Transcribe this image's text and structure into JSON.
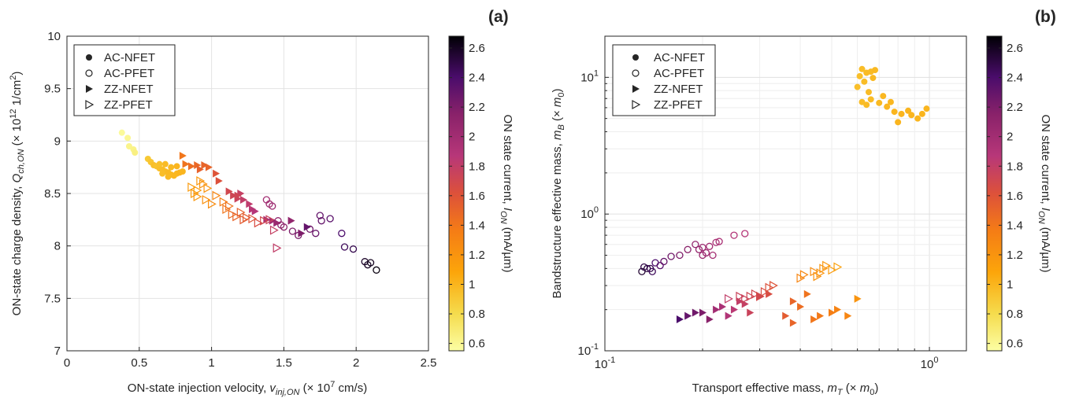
{
  "chart_data": [
    {
      "type": "scatter",
      "panel_label": "(a)",
      "xlabel_main": "ON-state injection velocity, ",
      "xlabel_var": "v",
      "xlabel_sub": "inj,ON",
      "xlabel_unit_pre": " (× 10",
      "xlabel_unit_exp": "7",
      "xlabel_unit_post": " cm/s)",
      "ylabel_main": "ON-state charge density, ",
      "ylabel_var": "Q",
      "ylabel_sub": "ch,ON",
      "ylabel_unit_pre": " (× 10",
      "ylabel_unit_exp": "12",
      "ylabel_unit_post": " 1/cm",
      "ylabel_unit_exp2": "2",
      "ylabel_unit_end": ")",
      "xlim": [
        0,
        2.5
      ],
      "ylim": [
        7,
        10
      ],
      "xticks": [
        "0",
        "0.5",
        "1",
        "1.5",
        "2",
        "2.5"
      ],
      "yticks": [
        "7",
        "7.5",
        "8",
        "8.5",
        "9",
        "9.5",
        "10"
      ],
      "xscale": "linear",
      "yscale": "linear",
      "grid": true,
      "legend_position": "top-left",
      "legend": [
        "AC-NFET",
        "AC-PFET",
        "ZZ-NFET",
        "ZZ-PFET"
      ],
      "colorbar": {
        "label_main": "ON state current, ",
        "label_var": "I",
        "label_sub": "ON",
        "label_unit": " (mA/µm)",
        "range": [
          0.55,
          2.68
        ],
        "ticks": [
          "0.6",
          "0.8",
          "1",
          "1.2",
          "1.4",
          "1.6",
          "1.8",
          "2",
          "2.2",
          "2.4",
          "2.6"
        ]
      },
      "series": [
        {
          "name": "AC-NFET",
          "marker": "filled-circle",
          "points": [
            [
              0.38,
              9.08,
              0.58
            ],
            [
              0.42,
              9.03,
              0.6
            ],
            [
              0.43,
              8.95,
              0.62
            ],
            [
              0.46,
              8.92,
              0.63
            ],
            [
              0.47,
              8.89,
              0.65
            ],
            [
              0.56,
              8.83,
              0.9
            ],
            [
              0.58,
              8.8,
              0.92
            ],
            [
              0.6,
              8.77,
              0.95
            ],
            [
              0.62,
              8.76,
              0.93
            ],
            [
              0.64,
              8.74,
              0.95
            ],
            [
              0.66,
              8.73,
              0.96
            ],
            [
              0.68,
              8.71,
              0.97
            ],
            [
              0.7,
              8.7,
              0.98
            ],
            [
              0.72,
              8.68,
              0.98
            ],
            [
              0.74,
              8.67,
              0.99
            ],
            [
              0.76,
              8.69,
              0.99
            ],
            [
              0.78,
              8.7,
              1.0
            ],
            [
              0.8,
              8.71,
              1.0
            ],
            [
              0.68,
              8.78,
              0.97
            ],
            [
              0.72,
              8.75,
              0.98
            ],
            [
              0.76,
              8.76,
              1.0
            ],
            [
              0.66,
              8.69,
              0.96
            ],
            [
              0.64,
              8.78,
              0.94
            ],
            [
              0.7,
              8.66,
              0.98
            ]
          ]
        },
        {
          "name": "AC-PFET",
          "marker": "open-circle",
          "points": [
            [
              1.38,
              8.44,
              2.0
            ],
            [
              1.4,
              8.4,
              2.02
            ],
            [
              1.42,
              8.38,
              2.04
            ],
            [
              1.46,
              8.24,
              2.1
            ],
            [
              1.48,
              8.2,
              2.12
            ],
            [
              1.5,
              8.18,
              2.14
            ],
            [
              1.56,
              8.14,
              2.2
            ],
            [
              1.6,
              8.1,
              2.22
            ],
            [
              1.68,
              8.16,
              2.25
            ],
            [
              1.72,
              8.12,
              2.28
            ],
            [
              1.75,
              8.29,
              2.3
            ],
            [
              1.76,
              8.24,
              2.3
            ],
            [
              1.82,
              8.26,
              2.34
            ],
            [
              1.9,
              8.12,
              2.4
            ],
            [
              1.92,
              7.99,
              2.45
            ],
            [
              1.98,
              7.97,
              2.48
            ],
            [
              2.06,
              7.85,
              2.58
            ],
            [
              2.08,
              7.82,
              2.6
            ],
            [
              2.1,
              7.84,
              2.61
            ],
            [
              2.14,
              7.77,
              2.65
            ]
          ]
        },
        {
          "name": "ZZ-NFET",
          "marker": "filled-triangle",
          "points": [
            [
              0.8,
              8.86,
              1.4
            ],
            [
              0.82,
              8.78,
              1.42
            ],
            [
              0.86,
              8.76,
              1.45
            ],
            [
              0.9,
              8.77,
              1.48
            ],
            [
              0.95,
              8.77,
              1.5
            ],
            [
              0.92,
              8.73,
              1.52
            ],
            [
              0.98,
              8.75,
              1.5
            ],
            [
              1.03,
              8.69,
              1.6
            ],
            [
              1.05,
              8.62,
              1.62
            ],
            [
              1.12,
              8.52,
              1.7
            ],
            [
              1.15,
              8.48,
              1.72
            ],
            [
              1.18,
              8.45,
              1.75
            ],
            [
              1.2,
              8.5,
              1.78
            ],
            [
              1.22,
              8.44,
              1.8
            ],
            [
              1.26,
              8.4,
              1.82
            ],
            [
              1.28,
              8.35,
              1.85
            ],
            [
              1.3,
              8.33,
              1.88
            ],
            [
              1.38,
              8.25,
              1.95
            ],
            [
              1.42,
              8.24,
              2.0
            ],
            [
              1.45,
              8.22,
              2.05
            ],
            [
              1.55,
              8.24,
              2.1
            ],
            [
              1.62,
              8.12,
              2.2
            ],
            [
              1.66,
              8.18,
              2.3
            ],
            [
              1.18,
              8.48,
              1.72
            ]
          ]
        },
        {
          "name": "ZZ-PFET",
          "marker": "open-triangle",
          "points": [
            [
              0.86,
              8.56,
              1.15
            ],
            [
              0.88,
              8.5,
              1.15
            ],
            [
              0.9,
              8.47,
              1.18
            ],
            [
              0.92,
              8.62,
              1.18
            ],
            [
              0.94,
              8.59,
              1.2
            ],
            [
              0.96,
              8.44,
              1.22
            ],
            [
              1.0,
              8.4,
              1.25
            ],
            [
              1.03,
              8.48,
              1.3
            ],
            [
              1.08,
              8.42,
              1.35
            ],
            [
              1.1,
              8.35,
              1.4
            ],
            [
              1.14,
              8.3,
              1.45
            ],
            [
              1.17,
              8.28,
              1.5
            ],
            [
              1.2,
              8.32,
              1.52
            ],
            [
              1.24,
              8.27,
              1.55
            ],
            [
              1.28,
              8.26,
              1.6
            ],
            [
              1.32,
              8.22,
              1.65
            ],
            [
              1.36,
              8.24,
              1.7
            ],
            [
              1.4,
              8.25,
              1.75
            ],
            [
              1.43,
              8.15,
              1.78
            ],
            [
              1.45,
              7.98,
              1.8
            ],
            [
              0.97,
              8.55,
              1.2
            ],
            [
              0.9,
              8.53,
              1.16
            ],
            [
              1.12,
              8.38,
              1.42
            ],
            [
              1.22,
              8.25,
              1.55
            ]
          ]
        }
      ]
    },
    {
      "type": "scatter",
      "panel_label": "(b)",
      "xlabel_main": "Transport effective mass, ",
      "xlabel_var": "m",
      "xlabel_sub": "T",
      "xlabel_unit_pre": " (× ",
      "xlabel_unit_var": "m",
      "xlabel_unit_sub": "0",
      "xlabel_unit_post": ")",
      "ylabel_main": "Bandstructure effective mass, ",
      "ylabel_var": "m",
      "ylabel_sub": "B",
      "ylabel_unit_pre": " (× ",
      "ylabel_unit_var": "m",
      "ylabel_unit_sub": "0",
      "ylabel_unit_post": ")",
      "xlim": [
        0.1,
        1.3
      ],
      "ylim": [
        0.1,
        20
      ],
      "xscale": "log",
      "yscale": "log",
      "xticks": [
        {
          "base": "10",
          "exp": "-1"
        },
        {
          "base": "10",
          "exp": "0"
        }
      ],
      "yticks": [
        {
          "base": "10",
          "exp": "-1"
        },
        {
          "base": "10",
          "exp": "0"
        },
        {
          "base": "10",
          "exp": "1"
        }
      ],
      "grid": true,
      "legend_position": "top-left",
      "legend": [
        "AC-NFET",
        "AC-PFET",
        "ZZ-NFET",
        "ZZ-PFET"
      ],
      "colorbar": {
        "label_main": "ON state current, ",
        "label_var": "I",
        "label_sub": "ON",
        "label_unit": " (mA/µm)",
        "range": [
          0.55,
          2.68
        ],
        "ticks": [
          "0.6",
          "0.8",
          "1",
          "1.2",
          "1.4",
          "1.6",
          "1.8",
          "2",
          "2.2",
          "2.4",
          "2.6"
        ]
      },
      "series": [
        {
          "name": "AC-NFET",
          "marker": "filled-circle",
          "points": [
            [
              0.6,
              8.5,
              0.95
            ],
            [
              0.61,
              10.2,
              0.95
            ],
            [
              0.62,
              11.5,
              0.96
            ],
            [
              0.63,
              9.3,
              0.96
            ],
            [
              0.64,
              10.8,
              0.97
            ],
            [
              0.65,
              7.8,
              0.97
            ],
            [
              0.66,
              11.0,
              0.97
            ],
            [
              0.67,
              9.9,
              0.98
            ],
            [
              0.68,
              11.3,
              0.98
            ],
            [
              0.62,
              6.6,
              0.96
            ],
            [
              0.64,
              6.3,
              0.97
            ],
            [
              0.66,
              6.9,
              0.97
            ],
            [
              0.7,
              6.5,
              0.98
            ],
            [
              0.72,
              7.3,
              0.99
            ],
            [
              0.74,
              6.1,
              0.99
            ],
            [
              0.78,
              5.6,
              1.0
            ],
            [
              0.8,
              4.7,
              1.0
            ],
            [
              0.82,
              5.4,
              1.0
            ],
            [
              0.86,
              5.7,
              1.0
            ],
            [
              0.88,
              5.3,
              1.0
            ],
            [
              0.92,
              5.0,
              1.0
            ],
            [
              0.95,
              5.4,
              1.0
            ],
            [
              0.98,
              5.9,
              1.0
            ],
            [
              0.76,
              6.6,
              0.99
            ]
          ]
        },
        {
          "name": "AC-PFET",
          "marker": "open-circle",
          "points": [
            [
              0.13,
              0.38,
              2.55
            ],
            [
              0.132,
              0.41,
              2.5
            ],
            [
              0.135,
              0.4,
              2.52
            ],
            [
              0.138,
              0.4,
              2.48
            ],
            [
              0.14,
              0.38,
              2.45
            ],
            [
              0.143,
              0.44,
              2.4
            ],
            [
              0.148,
              0.42,
              2.35
            ],
            [
              0.152,
              0.45,
              2.3
            ],
            [
              0.16,
              0.49,
              2.25
            ],
            [
              0.17,
              0.5,
              2.2
            ],
            [
              0.18,
              0.55,
              2.15
            ],
            [
              0.19,
              0.6,
              2.1
            ],
            [
              0.195,
              0.55,
              2.08
            ],
            [
              0.2,
              0.5,
              2.05
            ],
            [
              0.2,
              0.57,
              2.05
            ],
            [
              0.205,
              0.52,
              2.02
            ],
            [
              0.21,
              0.58,
              2.0
            ],
            [
              0.215,
              0.5,
              1.98
            ],
            [
              0.22,
              0.62,
              1.95
            ],
            [
              0.225,
              0.63,
              1.95
            ],
            [
              0.25,
              0.7,
              1.9
            ],
            [
              0.27,
              0.72,
              1.88
            ]
          ]
        },
        {
          "name": "ZZ-NFET",
          "marker": "filled-triangle",
          "points": [
            [
              0.17,
              0.17,
              2.4
            ],
            [
              0.18,
              0.18,
              2.3
            ],
            [
              0.19,
              0.19,
              2.25
            ],
            [
              0.2,
              0.19,
              2.2
            ],
            [
              0.21,
              0.17,
              2.15
            ],
            [
              0.22,
              0.2,
              2.0
            ],
            [
              0.23,
              0.21,
              1.95
            ],
            [
              0.24,
              0.18,
              1.9
            ],
            [
              0.25,
              0.2,
              1.85
            ],
            [
              0.26,
              0.23,
              1.8
            ],
            [
              0.27,
              0.22,
              1.78
            ],
            [
              0.28,
              0.19,
              1.75
            ],
            [
              0.3,
              0.25,
              1.7
            ],
            [
              0.32,
              0.26,
              1.65
            ],
            [
              0.36,
              0.18,
              1.55
            ],
            [
              0.38,
              0.16,
              1.5
            ],
            [
              0.4,
              0.21,
              1.45
            ],
            [
              0.42,
              0.26,
              1.42
            ],
            [
              0.44,
              0.17,
              1.4
            ],
            [
              0.46,
              0.18,
              1.38
            ],
            [
              0.5,
              0.19,
              1.35
            ],
            [
              0.52,
              0.2,
              1.32
            ],
            [
              0.56,
              0.18,
              1.3
            ],
            [
              0.6,
              0.24,
              1.2
            ],
            [
              0.38,
              0.23,
              1.5
            ]
          ]
        },
        {
          "name": "ZZ-PFET",
          "marker": "open-triangle",
          "points": [
            [
              0.24,
              0.24,
              1.8
            ],
            [
              0.26,
              0.25,
              1.75
            ],
            [
              0.27,
              0.24,
              1.75
            ],
            [
              0.28,
              0.25,
              1.72
            ],
            [
              0.29,
              0.26,
              1.7
            ],
            [
              0.3,
              0.25,
              1.68
            ],
            [
              0.31,
              0.27,
              1.65
            ],
            [
              0.32,
              0.29,
              1.62
            ],
            [
              0.33,
              0.3,
              1.6
            ],
            [
              0.4,
              0.34,
              1.3
            ],
            [
              0.41,
              0.36,
              1.28
            ],
            [
              0.44,
              0.38,
              1.25
            ],
            [
              0.45,
              0.35,
              1.22
            ],
            [
              0.47,
              0.4,
              1.2
            ],
            [
              0.48,
              0.42,
              1.18
            ],
            [
              0.5,
              0.39,
              1.15
            ],
            [
              0.52,
              0.41,
              1.12
            ],
            [
              0.46,
              0.37,
              1.2
            ]
          ]
        }
      ]
    }
  ]
}
